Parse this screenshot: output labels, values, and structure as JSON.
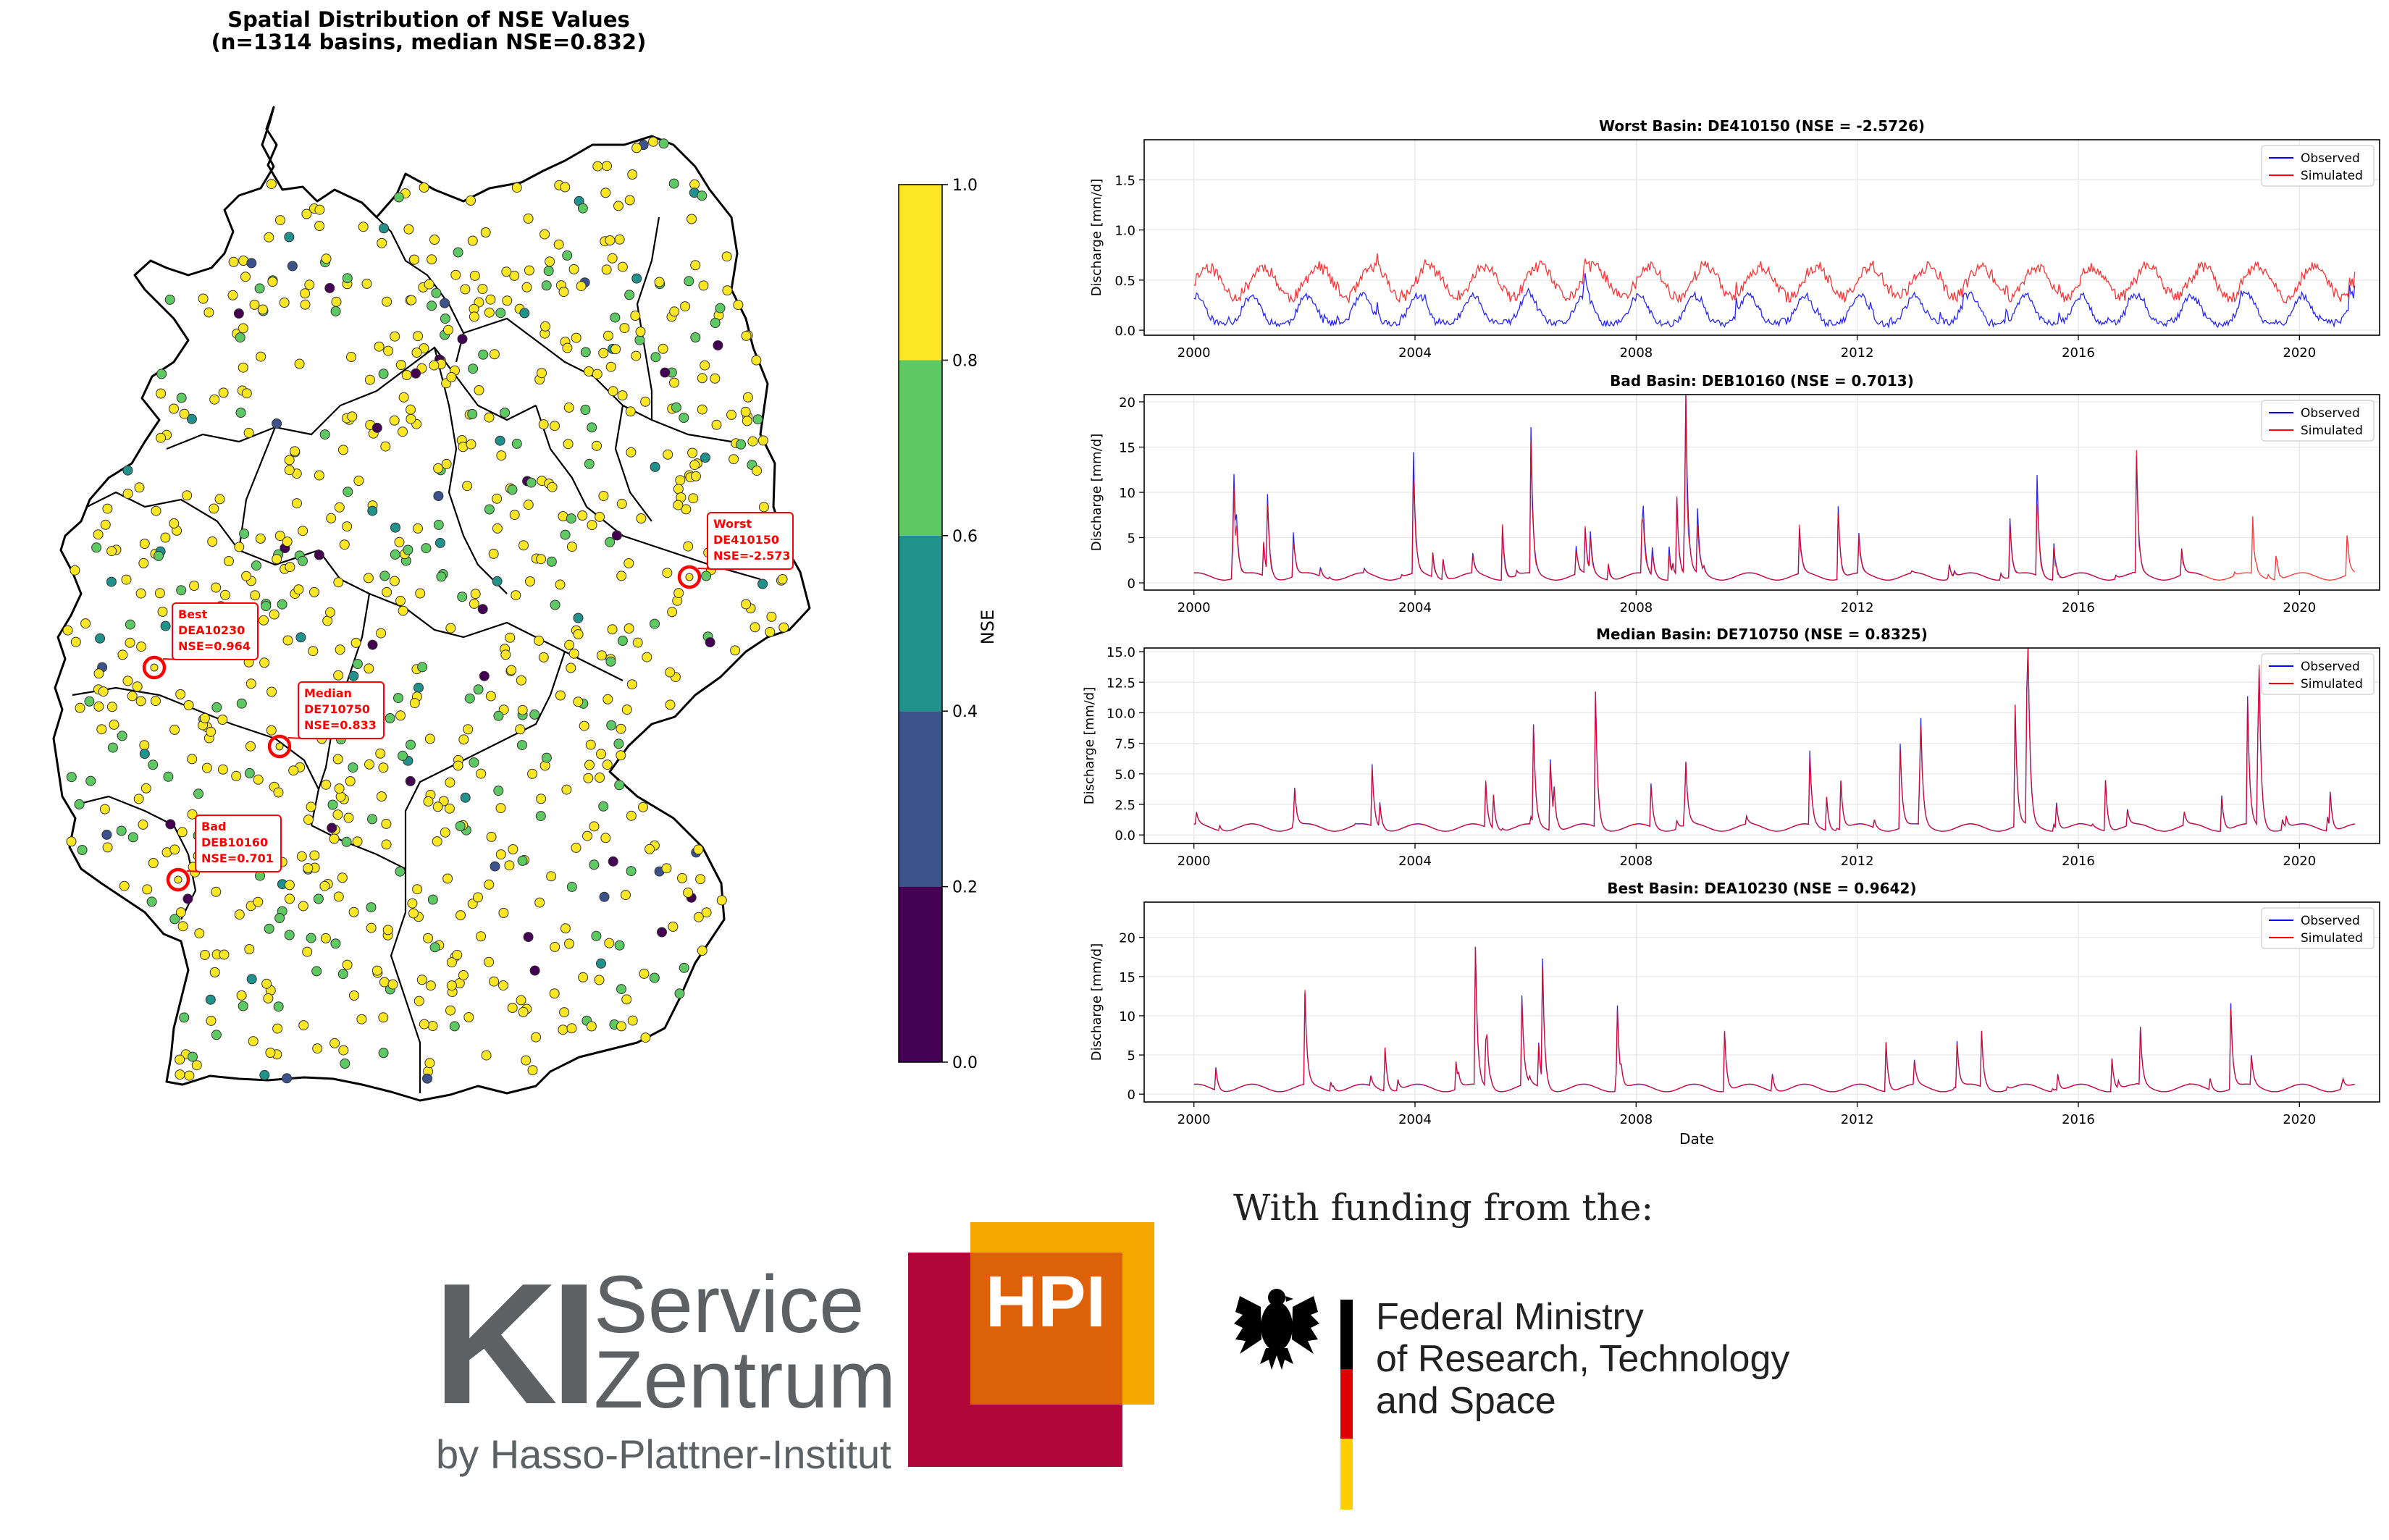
{
  "map_panel": {
    "title_line1": "Spatial Distribution of NSE Values",
    "title_line2": "(n=1314 basins, median NSE=0.832)",
    "colorbar": {
      "label": "NSE",
      "ticks": [
        "0.0",
        "0.2",
        "0.4",
        "0.6",
        "0.8",
        "1.0"
      ],
      "colors": [
        "#440154",
        "#3b528b",
        "#21918c",
        "#5ec962",
        "#fde725"
      ]
    },
    "annotations": [
      {
        "kind": "Best",
        "basin": "DEA10230",
        "nse": "NSE=0.964"
      },
      {
        "kind": "Median",
        "basin": "DE710750",
        "nse": "NSE=0.833"
      },
      {
        "kind": "Bad",
        "basin": "DEB10160",
        "nse": "NSE=0.701"
      },
      {
        "kind": "Worst",
        "basin": "DE410150",
        "nse": "NSE=-2.573"
      }
    ]
  },
  "chart_data": [
    {
      "type": "scatter",
      "title": "Spatial Distribution of NSE Values (n=1314 basins, median NSE=0.832)",
      "description_of_values": "NSE per basin, colour-binned on viridis scale",
      "colorbar_label": "NSE",
      "colorbar_range": [
        0.0,
        1.0
      ],
      "n_basins": 1314,
      "median_nse": 0.832,
      "highlighted": [
        {
          "label": "Best",
          "basin": "DEA10230",
          "nse": 0.964
        },
        {
          "label": "Median",
          "basin": "DE710750",
          "nse": 0.833
        },
        {
          "label": "Bad",
          "basin": "DEB10160",
          "nse": 0.701
        },
        {
          "label": "Worst",
          "basin": "DE410150",
          "nse": -2.573
        }
      ]
    },
    {
      "type": "line",
      "title": "Worst Basin: DE410150 (NSE = -2.5726)",
      "ylabel": "Discharge [mm/d]",
      "xlabel": "",
      "x_range": [
        2000,
        2021
      ],
      "ylim": [
        -0.05,
        1.9
      ],
      "yticks": [
        0.0,
        0.5,
        1.0,
        1.5
      ],
      "ytick_labels": [
        "0.0",
        "0.5",
        "1.0",
        "1.5"
      ],
      "seed": 11,
      "peak_scale": 1.0,
      "diff_mode": "offset",
      "series": [
        {
          "name": "Observed",
          "color": "#0000ff",
          "base": 0.08,
          "seasonal": 0.28,
          "peak": 0.9
        },
        {
          "name": "Simulated",
          "color": "#ff0000",
          "base": 0.45,
          "seasonal": 0.3,
          "peak": 0.9
        }
      ]
    },
    {
      "type": "line",
      "title": "Bad Basin: DEB10160 (NSE = 0.7013)",
      "ylabel": "Discharge [mm/d]",
      "xlabel": "",
      "x_range": [
        2000,
        2021
      ],
      "ylim": [
        -0.8,
        20.8
      ],
      "yticks": [
        0,
        5,
        10,
        15,
        20
      ],
      "ytick_labels": [
        "0",
        "5",
        "10",
        "15",
        "20"
      ],
      "seed": 23,
      "peak_scale": 20,
      "diff_mode": "obs_end_early",
      "series": [
        {
          "name": "Observed",
          "color": "#0000ff"
        },
        {
          "name": "Simulated",
          "color": "#ff0000"
        }
      ]
    },
    {
      "type": "line",
      "title": "Median Basin: DE710750 (NSE = 0.8325)",
      "ylabel": "Discharge [mm/d]",
      "xlabel": "",
      "x_range": [
        2000,
        2021
      ],
      "ylim": [
        -0.7,
        15.3
      ],
      "yticks": [
        0.0,
        2.5,
        5.0,
        7.5,
        10.0,
        12.5,
        15.0
      ],
      "ytick_labels": [
        "0.0",
        "2.5",
        "5.0",
        "7.5",
        "10.0",
        "12.5",
        "15.0"
      ],
      "seed": 37,
      "peak_scale": 15,
      "diff_mode": "close",
      "series": [
        {
          "name": "Observed",
          "color": "#0000ff"
        },
        {
          "name": "Simulated",
          "color": "#ff0000"
        }
      ]
    },
    {
      "type": "line",
      "title": "Best Basin: DEA10230 (NSE = 0.9642)",
      "ylabel": "Discharge [mm/d]",
      "xlabel": "Date",
      "x_range": [
        2000,
        2021
      ],
      "ylim": [
        -1.0,
        24.5
      ],
      "yticks": [
        0,
        5,
        10,
        15,
        20
      ],
      "ytick_labels": [
        "0",
        "5",
        "10",
        "15",
        "20"
      ],
      "seed": 53,
      "peak_scale": 24,
      "diff_mode": "close",
      "series": [
        {
          "name": "Observed",
          "color": "#0000ff"
        },
        {
          "name": "Simulated",
          "color": "#ff0000"
        }
      ]
    }
  ],
  "x_ticks": [
    "2000",
    "2004",
    "2008",
    "2012",
    "2016",
    "2020"
  ],
  "legend": {
    "observed": "Observed",
    "simulated": "Simulated"
  },
  "footer": {
    "funding_text": "With funding from the:",
    "ki_letters": "KI",
    "ki_service": "Service",
    "ki_zentrum": "Zentrum",
    "ki_by": "by Hasso-Plattner-Institut",
    "hpi_text": "HPI",
    "ministry_line1": "Federal Ministry",
    "ministry_line2": "of Research, Technology",
    "ministry_line3": "and Space",
    "colors": {
      "ki_grey": "#5d6164",
      "hpi_orange": "#f6a800",
      "hpi_dark_orange": "#dd6108",
      "hpi_red": "#b1063a"
    }
  }
}
